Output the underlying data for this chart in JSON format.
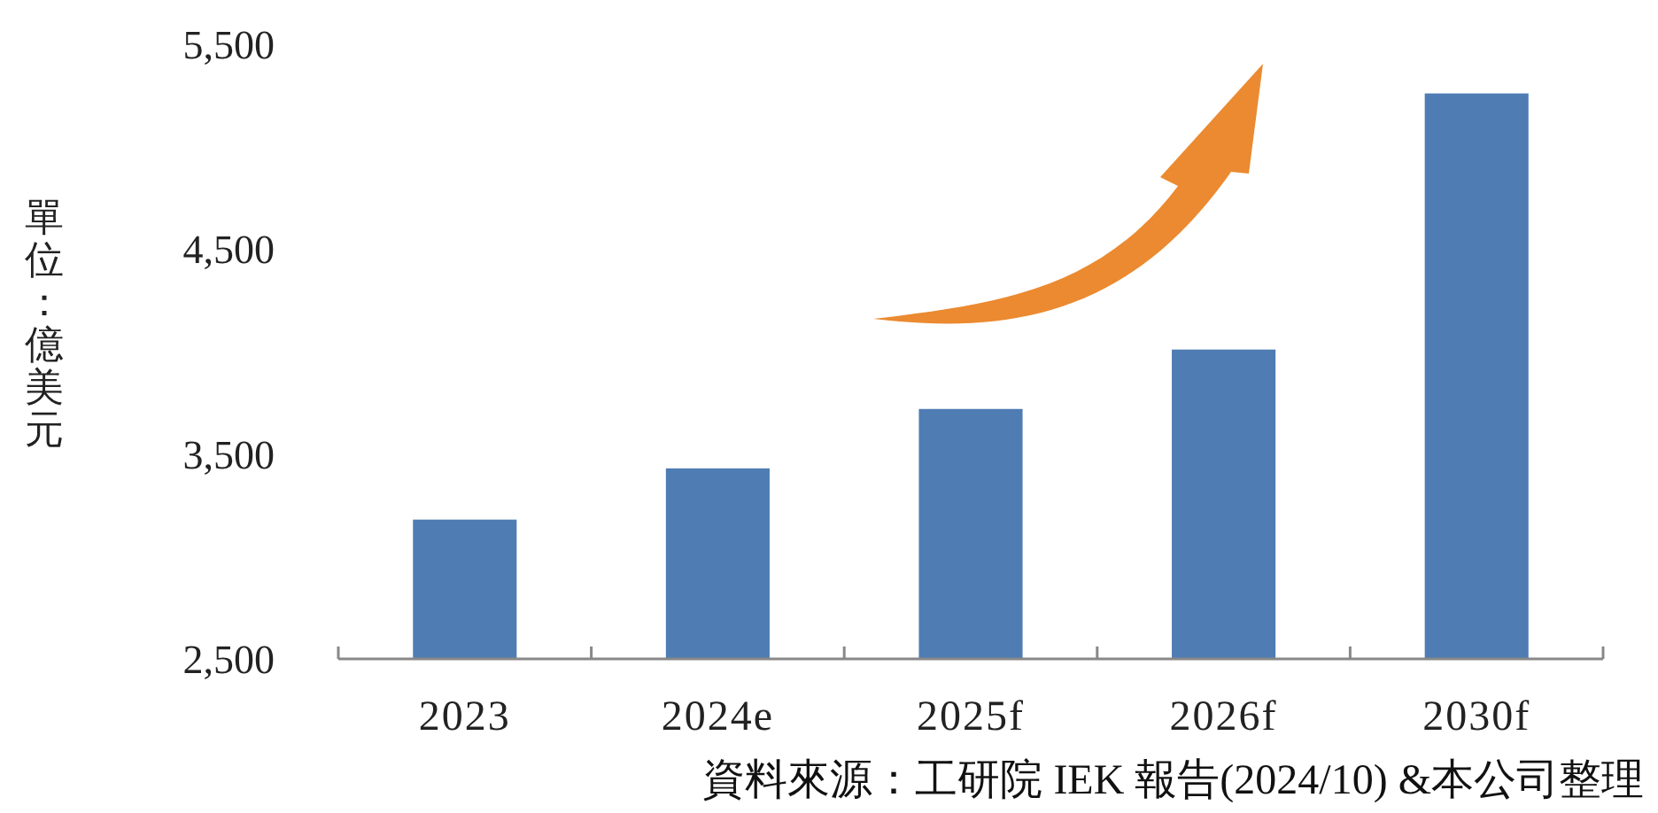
{
  "chart_data": {
    "type": "bar",
    "categories": [
      "2023",
      "2024e",
      "2025f",
      "2026f",
      "2030f"
    ],
    "values": [
      3180,
      3430,
      3720,
      4010,
      5260
    ],
    "color": "#4f7cb3",
    "ylim": [
      2500,
      5500
    ],
    "yticks": [
      {
        "value": 2500,
        "label": "2,500"
      },
      {
        "value": 3500,
        "label": "3,500"
      },
      {
        "value": 4500,
        "label": "4,500"
      },
      {
        "value": 5500,
        "label": "5,500"
      }
    ],
    "ylabel": "單位：億美元",
    "annotations": [
      "資料來源：工研院 IEK 報告(2024/10) &本公司整理"
    ]
  }
}
